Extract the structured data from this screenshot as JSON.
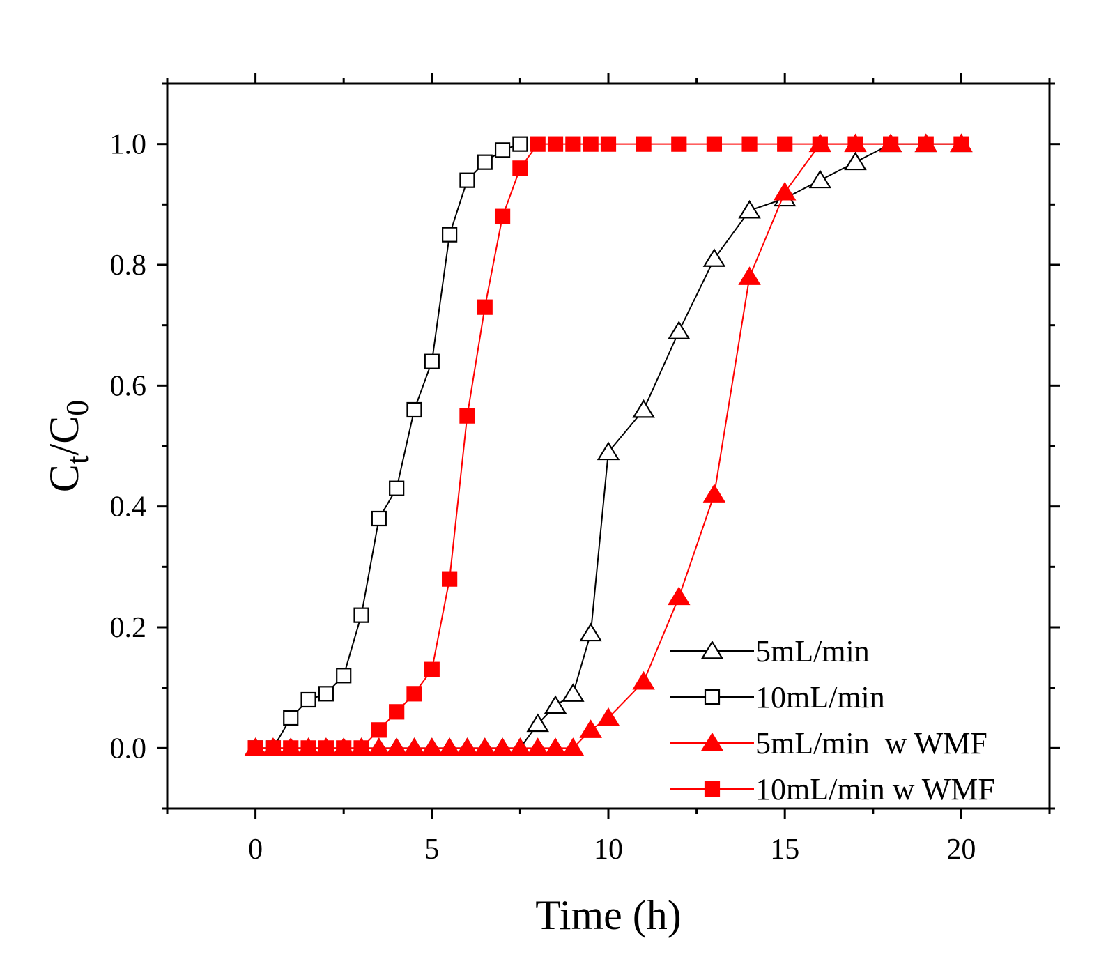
{
  "chart_data": {
    "type": "line",
    "xlabel": "Time (h)",
    "ylabel": {
      "main": "C",
      "sub1": "t",
      "sep": "/C",
      "sub2": "0"
    },
    "xlim": [
      -2.5,
      22.5
    ],
    "ylim": [
      -0.1,
      1.1
    ],
    "xticks": [
      0,
      5,
      10,
      15,
      20
    ],
    "xtick_labels": [
      "0",
      "5",
      "10",
      "15",
      "20"
    ],
    "yticks": [
      0.0,
      0.2,
      0.4,
      0.6,
      0.8,
      1.0
    ],
    "ytick_labels": [
      "0.0",
      "0.2",
      "0.4",
      "0.6",
      "0.8",
      "1.0"
    ],
    "legend_position": "bottom-right",
    "series": [
      {
        "name": "5mL/min",
        "color": "#000000",
        "marker": "triangle-open",
        "points": [
          [
            0,
            0
          ],
          [
            0.5,
            0
          ],
          [
            1,
            0
          ],
          [
            1.5,
            0
          ],
          [
            2,
            0
          ],
          [
            2.5,
            0
          ],
          [
            3,
            0
          ],
          [
            3.5,
            0
          ],
          [
            4,
            0
          ],
          [
            4.5,
            0
          ],
          [
            5,
            0
          ],
          [
            5.5,
            0
          ],
          [
            6,
            0
          ],
          [
            6.5,
            0
          ],
          [
            7,
            0
          ],
          [
            7.5,
            0
          ],
          [
            8,
            0.04
          ],
          [
            8.5,
            0.07
          ],
          [
            9,
            0.09
          ],
          [
            9.5,
            0.19
          ],
          [
            10,
            0.49
          ],
          [
            11,
            0.56
          ],
          [
            12,
            0.69
          ],
          [
            13,
            0.81
          ],
          [
            14,
            0.89
          ],
          [
            15,
            0.91
          ],
          [
            16,
            0.94
          ],
          [
            17,
            0.97
          ],
          [
            18,
            1.0
          ],
          [
            19,
            1.0
          ],
          [
            20,
            1.0
          ]
        ]
      },
      {
        "name": "10mL/min",
        "color": "#000000",
        "marker": "square-open",
        "points": [
          [
            0,
            0
          ],
          [
            0.5,
            0
          ],
          [
            1,
            0.05
          ],
          [
            1.5,
            0.08
          ],
          [
            2,
            0.09
          ],
          [
            2.5,
            0.12
          ],
          [
            3,
            0.22
          ],
          [
            3.5,
            0.38
          ],
          [
            4,
            0.43
          ],
          [
            4.5,
            0.56
          ],
          [
            5,
            0.64
          ],
          [
            5.5,
            0.85
          ],
          [
            6,
            0.94
          ],
          [
            6.5,
            0.97
          ],
          [
            7,
            0.99
          ],
          [
            7.5,
            1.0
          ]
        ]
      },
      {
        "name": "5mL/min  w WMF",
        "color": "#ff0000",
        "marker": "triangle-filled",
        "points": [
          [
            0,
            0
          ],
          [
            0.5,
            0
          ],
          [
            1,
            0
          ],
          [
            1.5,
            0
          ],
          [
            2,
            0
          ],
          [
            2.5,
            0
          ],
          [
            3,
            0
          ],
          [
            3.5,
            0
          ],
          [
            4,
            0
          ],
          [
            4.5,
            0
          ],
          [
            5,
            0
          ],
          [
            5.5,
            0
          ],
          [
            6,
            0
          ],
          [
            6.5,
            0
          ],
          [
            7,
            0
          ],
          [
            7.5,
            0
          ],
          [
            8,
            0
          ],
          [
            8.5,
            0
          ],
          [
            9,
            0
          ],
          [
            9.5,
            0.03
          ],
          [
            10,
            0.05
          ],
          [
            11,
            0.11
          ],
          [
            12,
            0.25
          ],
          [
            13,
            0.42
          ],
          [
            14,
            0.78
          ],
          [
            15,
            0.92
          ],
          [
            16,
            1.0
          ],
          [
            17,
            1.0
          ],
          [
            18,
            1.0
          ],
          [
            19,
            1.0
          ],
          [
            20,
            1.0
          ]
        ]
      },
      {
        "name": "10mL/min w WMF",
        "color": "#ff0000",
        "marker": "square-filled",
        "points": [
          [
            0,
            0
          ],
          [
            0.5,
            0
          ],
          [
            1,
            0
          ],
          [
            1.5,
            0
          ],
          [
            2,
            0
          ],
          [
            2.5,
            0
          ],
          [
            3,
            0
          ],
          [
            3.5,
            0.03
          ],
          [
            4,
            0.06
          ],
          [
            4.5,
            0.09
          ],
          [
            5,
            0.13
          ],
          [
            5.5,
            0.28
          ],
          [
            6,
            0.55
          ],
          [
            6.5,
            0.73
          ],
          [
            7,
            0.88
          ],
          [
            7.5,
            0.96
          ],
          [
            8,
            1.0
          ],
          [
            8.5,
            1.0
          ],
          [
            9,
            1.0
          ],
          [
            9.5,
            1.0
          ],
          [
            10,
            1.0
          ],
          [
            11,
            1.0
          ],
          [
            12,
            1.0
          ],
          [
            13,
            1.0
          ],
          [
            14,
            1.0
          ],
          [
            15,
            1.0
          ],
          [
            16,
            1.0
          ],
          [
            17,
            1.0
          ],
          [
            18,
            1.0
          ],
          [
            19,
            1.0
          ],
          [
            20,
            1.0
          ]
        ]
      }
    ]
  }
}
